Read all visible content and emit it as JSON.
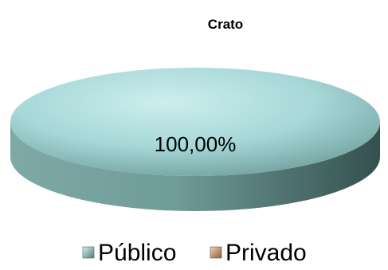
{
  "chart_data": {
    "type": "pie",
    "title": "Crato",
    "slices": [
      {
        "label": "Público",
        "value": 100,
        "display": "100,00%",
        "color": "#9ad0d0"
      },
      {
        "label": "Privado",
        "value": 0,
        "display": "",
        "color": "#d0a27a"
      }
    ],
    "legend_position": "bottom",
    "style": "3d"
  }
}
